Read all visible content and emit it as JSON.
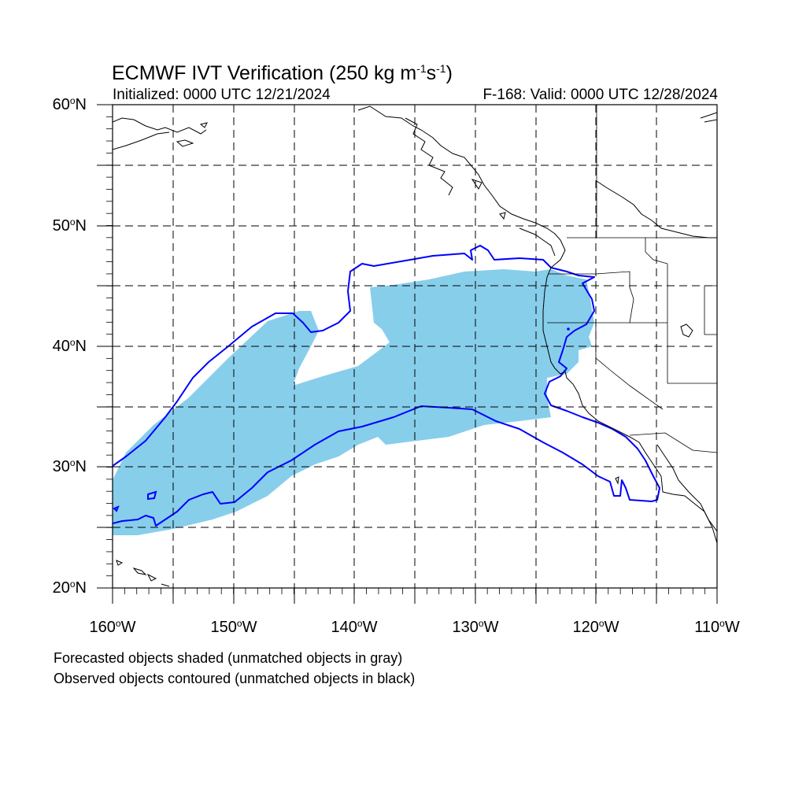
{
  "header": {
    "title_main": "ECMWF IVT Verification (250 kg m",
    "title_exp1": "-1",
    "title_mid": "s",
    "title_exp2": "-1",
    "title_end": ")",
    "initialized": "Initialized: 0000 UTC 12/21/2024",
    "valid": "F-168: Valid: 0000 UTC 12/28/2024"
  },
  "axes": {
    "lat_labels": [
      {
        "num": "60",
        "deg": "o",
        "hem": "N"
      },
      {
        "num": "50",
        "deg": "o",
        "hem": "N"
      },
      {
        "num": "40",
        "deg": "o",
        "hem": "N"
      },
      {
        "num": "30",
        "deg": "o",
        "hem": "N"
      },
      {
        "num": "20",
        "deg": "o",
        "hem": "N"
      }
    ],
    "lon_labels": [
      {
        "num": "160",
        "deg": "o",
        "hem": "W"
      },
      {
        "num": "150",
        "deg": "o",
        "hem": "W"
      },
      {
        "num": "140",
        "deg": "o",
        "hem": "W"
      },
      {
        "num": "130",
        "deg": "o",
        "hem": "W"
      },
      {
        "num": "120",
        "deg": "o",
        "hem": "W"
      },
      {
        "num": "110",
        "deg": "o",
        "hem": "W"
      }
    ]
  },
  "map_data": {
    "projection": "cylindrical equidistant",
    "lon_range": [
      -160,
      -110
    ],
    "lat_range": [
      20,
      60
    ],
    "grid_lon": [
      -155,
      -150,
      -145,
      -140,
      -135,
      -130,
      -125,
      -120,
      -115
    ],
    "grid_lat": [
      25,
      30,
      35,
      40,
      45,
      50,
      55
    ],
    "forecast_color": "#87CEEB",
    "observed_color": "#0000FF",
    "coast_color": "#000000"
  },
  "captions": {
    "line1": "Forecasted objects shaded (unmatched objects in gray)",
    "line2": "Observed objects contoured (unmatched objects in black)"
  }
}
